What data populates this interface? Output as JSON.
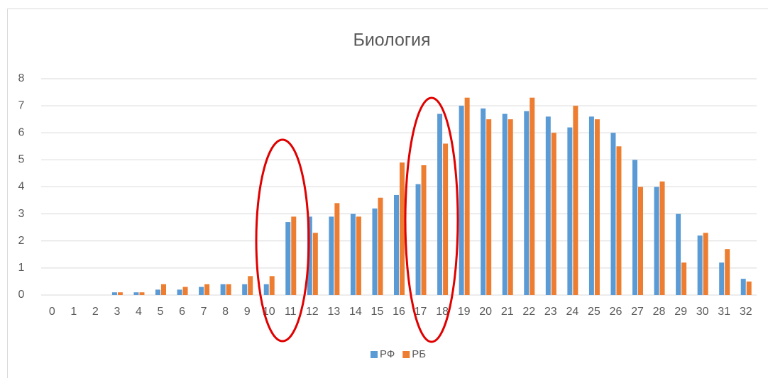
{
  "chart_data": {
    "type": "bar",
    "title": "Биология",
    "categories": [
      "0",
      "1",
      "2",
      "3",
      "4",
      "5",
      "6",
      "7",
      "8",
      "9",
      "10",
      "11",
      "12",
      "13",
      "14",
      "15",
      "16",
      "17",
      "18",
      "19",
      "20",
      "21",
      "22",
      "23",
      "24",
      "25",
      "26",
      "27",
      "28",
      "29",
      "30",
      "31",
      "32"
    ],
    "series": [
      {
        "name": "РФ",
        "color": "#5b9bd5",
        "values": [
          0,
          0,
          0,
          0.1,
          0.1,
          0.2,
          0.2,
          0.3,
          0.4,
          0.4,
          0.4,
          2.7,
          2.9,
          2.9,
          3.0,
          3.2,
          3.7,
          4.1,
          6.7,
          7.0,
          6.9,
          6.7,
          6.8,
          6.6,
          6.2,
          6.6,
          6.0,
          5.0,
          4.0,
          3.0,
          2.2,
          1.2,
          0.6
        ]
      },
      {
        "name": "РБ",
        "color": "#ed7d31",
        "values": [
          0,
          0,
          0,
          0.1,
          0.1,
          0.4,
          0.3,
          0.4,
          0.4,
          0.7,
          0.7,
          2.9,
          2.3,
          3.4,
          2.9,
          3.6,
          4.9,
          4.8,
          5.6,
          7.3,
          6.5,
          6.5,
          7.3,
          6.0,
          7.0,
          6.5,
          5.5,
          4.0,
          4.2,
          1.2,
          2.3,
          1.7,
          0.5
        ]
      }
    ],
    "ylim": [
      0,
      8
    ],
    "yticks": [
      0,
      1,
      2,
      3,
      4,
      5,
      6,
      7,
      8
    ],
    "grid": true,
    "legend": "bottom"
  }
}
